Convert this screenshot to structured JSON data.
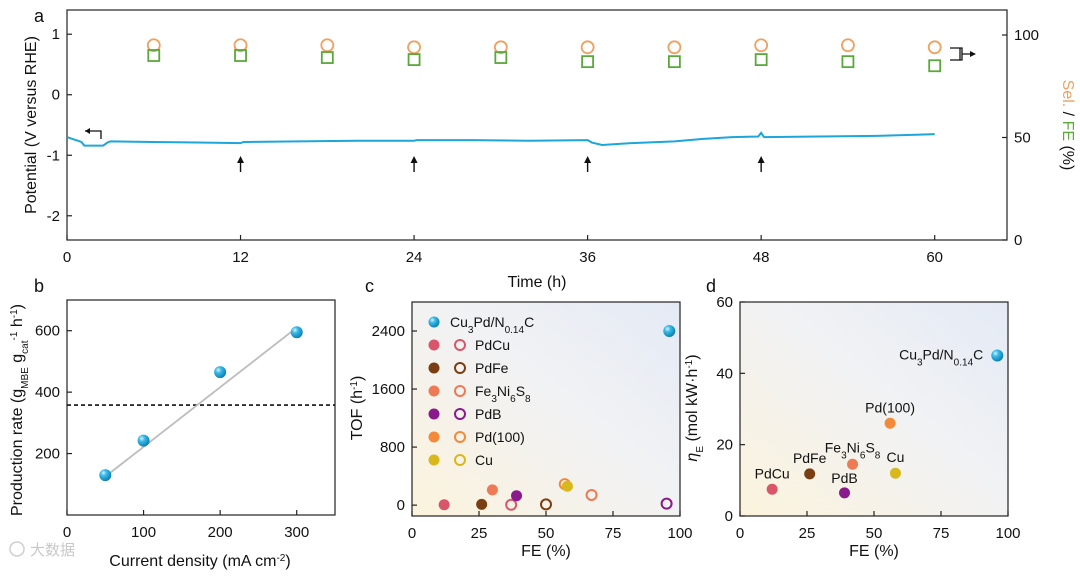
{
  "colors": {
    "cyan": "#1ca6d9",
    "sel_orange": "#f0a060",
    "fe_green": "#5aa83a",
    "pdcu": "#d9566a",
    "pdfe": "#7a3e12",
    "fe3ni6s8": "#ee7a55",
    "pdb": "#8a1a8c",
    "pd100": "#f28a3a",
    "cu": "#d8b81c",
    "fit_line": "#bdbdbd"
  },
  "watermark": "大数据",
  "chart_data": [
    {
      "panel": "a",
      "type": "line",
      "xlabel": "Time (h)",
      "ylabel": "Potential (V versus RHE)",
      "y2label_parts": [
        "Sel.",
        " / ",
        "FE",
        " (%)"
      ],
      "xlim": [
        0,
        65
      ],
      "ylim": [
        -2.4,
        1.4
      ],
      "y2lim": [
        0,
        100
      ],
      "xticks": [
        "0",
        "12",
        "24",
        "36",
        "48",
        "60"
      ],
      "yticks": [
        "1",
        "0",
        "-1",
        "-2"
      ],
      "y2ticks": [
        "100",
        "50",
        "0"
      ],
      "potential": {
        "time": [
          0,
          0.5,
          1,
          1.2,
          2.5,
          2.8,
          3,
          6,
          9,
          12,
          12.2,
          16,
          20,
          24,
          24.2,
          28,
          32,
          36,
          36.3,
          37,
          39,
          42,
          44,
          46,
          47.8,
          48,
          48.2,
          52,
          56,
          59,
          60
        ],
        "values": [
          -0.7,
          -0.74,
          -0.78,
          -0.84,
          -0.84,
          -0.79,
          -0.77,
          -0.78,
          -0.79,
          -0.8,
          -0.78,
          -0.77,
          -0.76,
          -0.76,
          -0.75,
          -0.75,
          -0.76,
          -0.75,
          -0.79,
          -0.83,
          -0.8,
          -0.77,
          -0.73,
          -0.7,
          -0.69,
          -0.63,
          -0.7,
          -0.69,
          -0.68,
          -0.66,
          -0.65
        ]
      },
      "selectivity": {
        "time": [
          6,
          12,
          18,
          24,
          30,
          36,
          42,
          48,
          54,
          60
        ],
        "values": [
          95,
          95,
          95,
          94,
          94,
          94,
          94,
          95,
          95,
          94
        ]
      },
      "fe": {
        "time": [
          6,
          12,
          18,
          24,
          30,
          36,
          42,
          48,
          54,
          60
        ],
        "values": [
          90,
          90,
          89,
          88,
          89,
          87,
          87,
          88,
          87,
          85
        ]
      },
      "arrows_time": [
        "12",
        "24",
        "36",
        "48"
      ]
    },
    {
      "panel": "b",
      "type": "scatter",
      "xlabel": "Current density (mA cm-2)",
      "ylabel": "Production rate (gMBE gcat-1 h-1)",
      "xlim": [
        0,
        350
      ],
      "ylim": [
        0,
        700
      ],
      "xticks": [
        "0",
        "100",
        "200",
        "300"
      ],
      "yticks": [
        "200",
        "400",
        "600"
      ],
      "x": [
        50,
        100,
        200,
        300
      ],
      "y": [
        130,
        242,
        465,
        595
      ],
      "fit": [
        [
          50,
          125
        ],
        [
          300,
          610
        ]
      ],
      "dashed_y": 358
    },
    {
      "panel": "c",
      "type": "scatter",
      "xlabel": "FE (%)",
      "ylabel": "TOF (h-1)",
      "xlim": [
        0,
        100
      ],
      "ylim": [
        -150,
        2800
      ],
      "xticks": [
        "0",
        "25",
        "50",
        "75",
        "100"
      ],
      "yticks": [
        "0",
        "800",
        "1600",
        "2400"
      ],
      "legend": [
        "Cu3Pd/N0.14C",
        "PdCu",
        "PdFe",
        "Fe3Ni6S8",
        "PdB",
        "Pd(100)",
        "Cu"
      ],
      "points": [
        {
          "name": "Cu3Pd/N0.14C",
          "x": 96,
          "y": 2400,
          "fill": "ball"
        },
        {
          "name": "PdCu",
          "x": 12,
          "y": 5,
          "fill": "solid"
        },
        {
          "name": "PdCu",
          "x": 37,
          "y": 5,
          "fill": "open"
        },
        {
          "name": "PdFe",
          "x": 26,
          "y": 10,
          "fill": "solid"
        },
        {
          "name": "PdFe",
          "x": 50,
          "y": 10,
          "fill": "open"
        },
        {
          "name": "Fe3Ni6S8",
          "x": 30,
          "y": 210,
          "fill": "solid"
        },
        {
          "name": "Fe3Ni6S8",
          "x": 67,
          "y": 140,
          "fill": "open"
        },
        {
          "name": "PdB",
          "x": 39,
          "y": 130,
          "fill": "solid"
        },
        {
          "name": "PdB",
          "x": 95,
          "y": 20,
          "fill": "open"
        },
        {
          "name": "Pd(100)",
          "x": 57,
          "y": 290,
          "fill": "open"
        },
        {
          "name": "Cu",
          "x": 58,
          "y": 260,
          "fill": "solid"
        }
      ]
    },
    {
      "panel": "d",
      "type": "scatter",
      "xlabel": "FE (%)",
      "ylabel": "ηE (mol kW·h-1)",
      "xlim": [
        0,
        100
      ],
      "ylim": [
        0,
        60
      ],
      "xticks": [
        "0",
        "25",
        "50",
        "75",
        "100"
      ],
      "yticks": [
        "0",
        "20",
        "40",
        "60"
      ],
      "points": [
        {
          "name": "Cu3Pd/N0.14C",
          "x": 96,
          "y": 45
        },
        {
          "name": "PdCu",
          "x": 12,
          "y": 7.5
        },
        {
          "name": "PdFe",
          "x": 26,
          "y": 11.8
        },
        {
          "name": "Fe3Ni6S8",
          "x": 42,
          "y": 14.5
        },
        {
          "name": "PdB",
          "x": 39,
          "y": 6.5
        },
        {
          "name": "Pd(100)",
          "x": 56,
          "y": 26
        },
        {
          "name": "Cu",
          "x": 58,
          "y": 12
        }
      ]
    }
  ]
}
